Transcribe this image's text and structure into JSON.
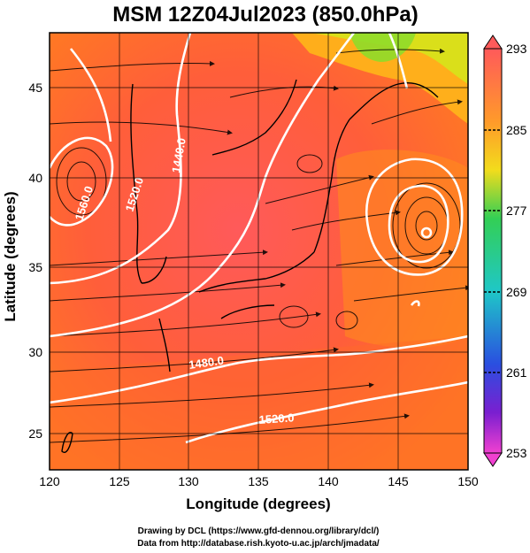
{
  "title": "MSM 12Z04Jul2023 (850.0hPa)",
  "xlabel": "Longitude (degrees)",
  "ylabel": "Latitude  (degrees)",
  "x_ticks": [
    "120",
    "125",
    "130",
    "135",
    "140",
    "145",
    "150"
  ],
  "y_ticks": [
    "25",
    "30",
    "35",
    "40",
    "45"
  ],
  "colorbar": {
    "ticks": [
      "293",
      "285",
      "277",
      "269",
      "261",
      "253"
    ],
    "colors": [
      "#ff6060",
      "#ff9a2a",
      "#f7d020",
      "#9be32b",
      "#2bd37a",
      "#22c7c7",
      "#2a7ae0",
      "#3a2fd0",
      "#a020c0",
      "#f040d0"
    ]
  },
  "contour_labels": [
    "1440.0",
    "1480.0",
    "1520.0",
    "1560.0",
    "1520.0",
    "1480.0"
  ],
  "credits": [
    "Drawing by DCL (https://www.gfd-dennou.org/library/dcl/)",
    "Data from http://database.rish.kyoto-u.ac.jp/arch/jmadata/"
  ]
}
